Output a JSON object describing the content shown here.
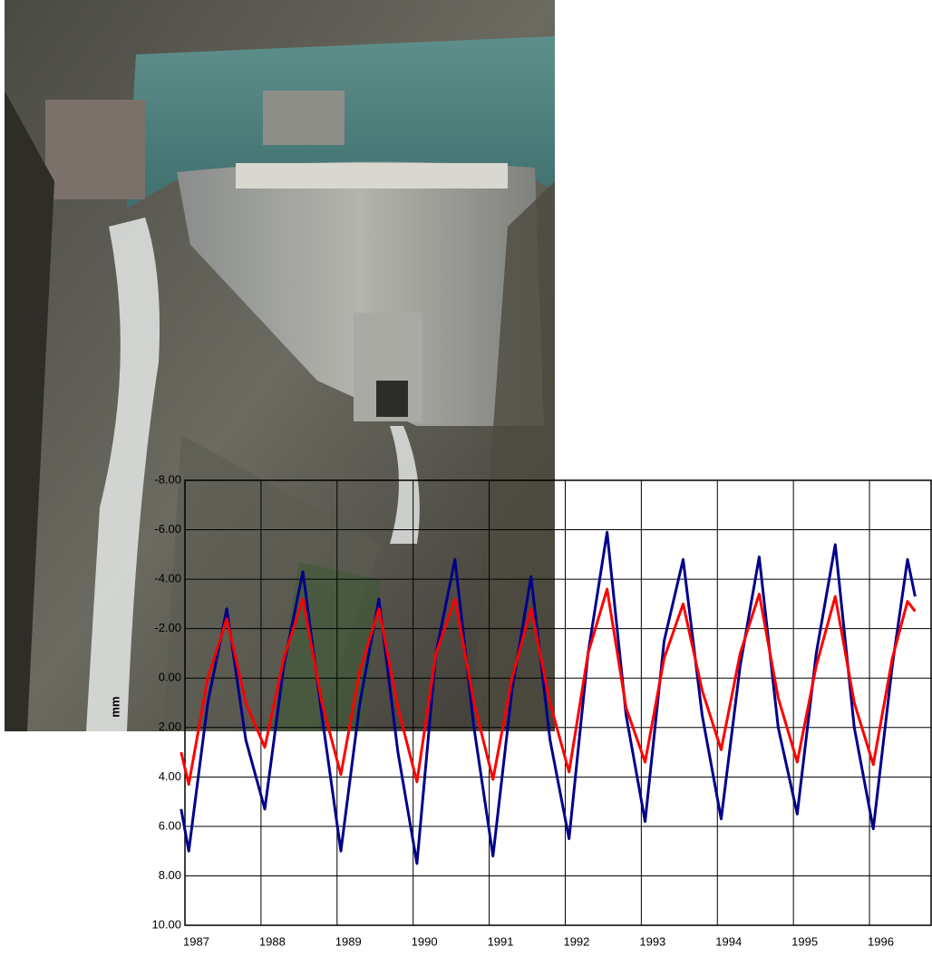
{
  "chart_data": {
    "type": "line",
    "y_label": "mm",
    "x": [
      1986.95,
      1987.05,
      1987.3,
      1987.55,
      1987.8,
      1988.05,
      1988.3,
      1988.55,
      1988.8,
      1989.05,
      1989.3,
      1989.55,
      1989.8,
      1990.05,
      1990.3,
      1990.55,
      1990.8,
      1991.05,
      1991.3,
      1991.55,
      1991.8,
      1992.05,
      1992.3,
      1992.55,
      1992.8,
      1993.05,
      1993.3,
      1993.55,
      1993.8,
      1994.05,
      1994.3,
      1994.55,
      1994.8,
      1995.05,
      1995.3,
      1995.55,
      1995.8,
      1996.05,
      1996.3,
      1996.5,
      1996.6
    ],
    "series": [
      {
        "color": "#00008b",
        "values": [
          5.3,
          7.0,
          1.0,
          -2.8,
          2.5,
          5.3,
          -0.5,
          -4.3,
          1.5,
          7.0,
          1.0,
          -3.2,
          3.0,
          7.5,
          -1.0,
          -4.8,
          2.0,
          7.2,
          0.5,
          -4.1,
          2.5,
          6.5,
          -1.0,
          -5.9,
          1.5,
          5.8,
          -1.5,
          -4.8,
          1.5,
          5.7,
          -0.5,
          -4.9,
          2.0,
          5.5,
          -1.0,
          -5.4,
          2.0,
          6.1,
          -0.5,
          -4.8,
          -3.3
        ]
      },
      {
        "color": "#ff0000",
        "values": [
          3.0,
          4.3,
          0.0,
          -2.4,
          1.0,
          2.8,
          -0.8,
          -3.2,
          1.0,
          3.9,
          -0.3,
          -2.8,
          1.2,
          4.2,
          -1.0,
          -3.2,
          1.0,
          4.1,
          0.0,
          -2.8,
          1.0,
          3.8,
          -1.0,
          -3.6,
          1.2,
          3.4,
          -0.8,
          -3.0,
          0.5,
          2.9,
          -1.0,
          -3.4,
          0.8,
          3.4,
          -0.5,
          -3.3,
          1.0,
          3.5,
          -0.8,
          -3.1,
          -2.7
        ]
      }
    ],
    "xlim": [
      1987,
      1996.81
    ],
    "xticks": [
      1987,
      1988,
      1989,
      1990,
      1991,
      1992,
      1993,
      1994,
      1995,
      1996
    ],
    "ylim": [
      -8,
      10
    ],
    "y_inverted": true,
    "yticks": [
      {
        "value": -8,
        "label": "-8.00"
      },
      {
        "value": -6,
        "label": "-6.00"
      },
      {
        "value": -4,
        "label": "-4.00"
      },
      {
        "value": -2,
        "label": "-2.00"
      },
      {
        "value": 0,
        "label": "0.00"
      },
      {
        "value": 2,
        "label": "2.00"
      },
      {
        "value": 4,
        "label": "4.00"
      },
      {
        "value": 6,
        "label": "6.00"
      },
      {
        "value": 8,
        "label": "8.00"
      },
      {
        "value": 10,
        "label": "10.00"
      }
    ],
    "grid": true
  }
}
